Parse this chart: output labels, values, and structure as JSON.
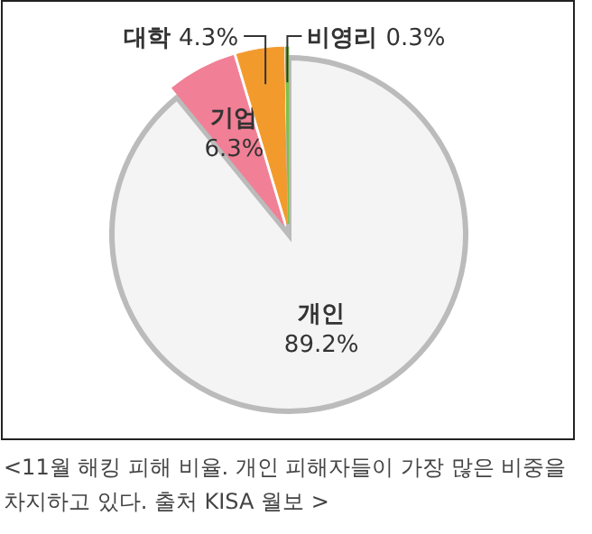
{
  "chart_data": {
    "type": "pie",
    "categories": [
      "개인",
      "기업",
      "대학",
      "비영리"
    ],
    "values": [
      89.2,
      6.3,
      4.3,
      0.3
    ],
    "colors": [
      "#f4f4f4",
      "#f17f95",
      "#f39a2c",
      "#7cc242"
    ],
    "value_labels": [
      "89.2%",
      "6.3%",
      "4.3%",
      "0.3%"
    ],
    "annotations": [
      "<11월 해킹 피해 비율. 개인 피해자들이 가장 많은 비중을 차지하고 있다. 출처 KISA 월보 >"
    ]
  }
}
